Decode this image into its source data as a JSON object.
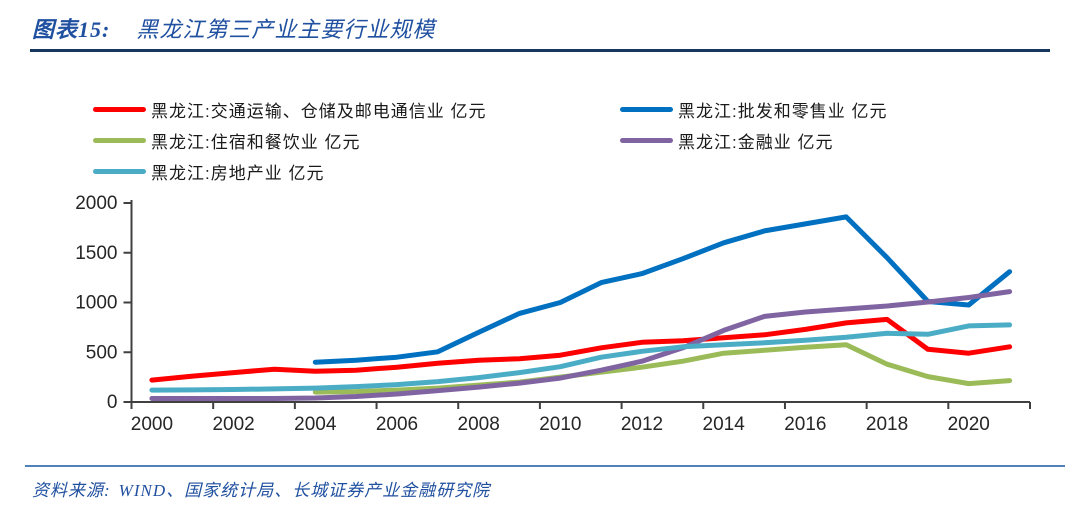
{
  "header": {
    "title_prefix": "图表15:",
    "title": "黑龙江第三产业主要行业规模"
  },
  "footer": {
    "source_label": "资料来源:",
    "source": "WIND、国家统计局、长城证券产业金融研究院"
  },
  "colors": {
    "title_blue": "#2050A0",
    "top_rule": "#17365D",
    "bottom_rule": "#4F81BD",
    "axis": "#404040",
    "tick_text": "#262626"
  },
  "chart_data": {
    "type": "line",
    "title": "黑龙江第三产业主要行业规模",
    "unit": "亿元",
    "x": [
      2000,
      2001,
      2002,
      2003,
      2004,
      2005,
      2006,
      2007,
      2008,
      2009,
      2010,
      2011,
      2012,
      2013,
      2014,
      2015,
      2016,
      2017,
      2018,
      2019,
      2020,
      2021
    ],
    "x_tick_labels": [
      "2000",
      "2002",
      "2004",
      "2006",
      "2008",
      "2010",
      "2012",
      "2014",
      "2016",
      "2018",
      "2020"
    ],
    "y_ticks": [
      0,
      500,
      1000,
      1500,
      2000
    ],
    "ylim": [
      0,
      2000
    ],
    "grid": false,
    "legend_position": "top, two columns",
    "series": [
      {
        "name": "黑龙江:交通运输、仓储及邮电通信业 亿元",
        "color": "#FF0000",
        "values": [
          220,
          260,
          295,
          330,
          310,
          320,
          350,
          390,
          420,
          435,
          470,
          545,
          600,
          615,
          645,
          675,
          730,
          795,
          830,
          530,
          490,
          555
        ]
      },
      {
        "name": "黑龙江:批发和零售业 亿元",
        "color": "#0070C0",
        "values": [
          null,
          null,
          null,
          null,
          400,
          420,
          450,
          505,
          700,
          890,
          1000,
          1200,
          1290,
          1440,
          1600,
          1720,
          1790,
          1860,
          1450,
          1010,
          975,
          1310
        ]
      },
      {
        "name": "黑龙江:住宿和餐饮业 亿元",
        "color": "#9BBB59",
        "values": [
          null,
          null,
          null,
          null,
          100,
          105,
          120,
          140,
          170,
          200,
          250,
          300,
          350,
          410,
          490,
          520,
          550,
          575,
          380,
          255,
          185,
          215
        ]
      },
      {
        "name": "黑龙江:金融业 亿元",
        "color": "#8064A2",
        "values": [
          35,
          35,
          35,
          35,
          40,
          55,
          80,
          115,
          150,
          190,
          240,
          320,
          410,
          545,
          720,
          860,
          905,
          935,
          965,
          1005,
          1050,
          1110
        ]
      },
      {
        "name": "黑龙江:房地产业 亿元",
        "color": "#4BACC6",
        "values": [
          120,
          122,
          126,
          132,
          140,
          155,
          175,
          205,
          245,
          295,
          355,
          450,
          510,
          555,
          575,
          595,
          620,
          650,
          690,
          680,
          765,
          775
        ]
      }
    ]
  }
}
